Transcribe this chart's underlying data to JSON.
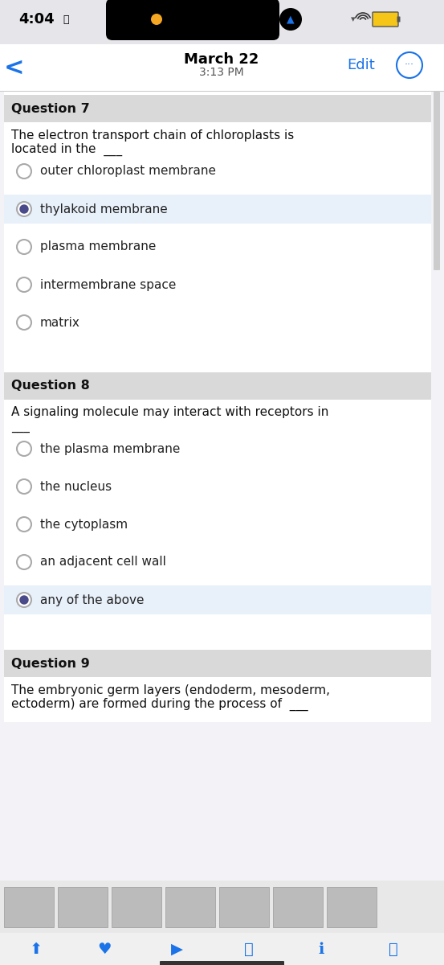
{
  "bg_color": "#f2f2f7",
  "white": "#ffffff",
  "status_time": "4:04",
  "nav_date": "March 22",
  "nav_time": "3:13 PM",
  "nav_edit": "Edit",
  "q7_header": "Question 7",
  "q7_text_line1": "The electron transport chain of chloroplasts is",
  "q7_text_line2": "located in the  ___",
  "q7_options": [
    "outer chloroplast membrane",
    "thylakoid membrane",
    "plasma membrane",
    "intermembrane space",
    "matrix"
  ],
  "q7_selected": 1,
  "q8_header": "Question 8",
  "q8_text_line1": "A signaling molecule may interact with receptors in",
  "q8_text_line2": "___",
  "q8_options": [
    "the plasma membrane",
    "the nucleus",
    "the cytoplasm",
    "an adjacent cell wall",
    "any of the above"
  ],
  "q8_selected": 4,
  "q9_header": "Question 9",
  "q9_text_line1": "The embryonic germ layers (endoderm, mesoderm,",
  "q9_text_line2": "ectoderm) are formed during the process of  ___",
  "header_bg": "#d9d9d9",
  "selected_bg": "#e8f0fa",
  "radio_color": "#666666",
  "radio_selected_color": "#555577",
  "text_color": "#111111",
  "option_text_color": "#222222",
  "blue_color": "#1a73e8",
  "scrollbar_color": "#cccccc",
  "bottom_bar_color": "#f0f0f0",
  "font_size_header": 11.5,
  "font_size_body": 11,
  "font_size_option": 11
}
